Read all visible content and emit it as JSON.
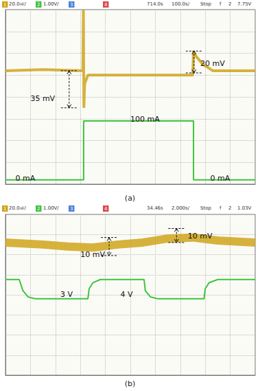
{
  "chart_data": [
    {
      "type": "line",
      "panel_label": "(a)",
      "header": [
        "1",
        "20.0㎷/",
        "2",
        "1.00V/",
        "3",
        "4",
        "714.0s",
        "100.0s/",
        "Stop",
        "f",
        "2",
        "7.75V"
      ],
      "xlim": [
        0,
        10
      ],
      "xticks": [
        0,
        1,
        2,
        3,
        4,
        5,
        6,
        7,
        8,
        9,
        10
      ],
      "ylim": [
        0,
        8
      ],
      "yticks": [
        0,
        1,
        2,
        3,
        4,
        5,
        6,
        7,
        8
      ],
      "grid": true,
      "tick_labels": false,
      "series": [
        {
          "name": "1",
          "color": "#cfa41c",
          "x": [
            0,
            1.5,
            3.1,
            3.12,
            3.14,
            3.17,
            3.3,
            5.0,
            7.5,
            7.53,
            7.6,
            7.9,
            8.3,
            10
          ],
          "values": [
            5.2,
            5.25,
            5.2,
            8.0,
            3.5,
            4.6,
            5.0,
            5.0,
            5.0,
            6.1,
            5.9,
            5.5,
            5.2,
            5.2
          ]
        },
        {
          "name": "2",
          "color": "#3cc43c",
          "x": [
            0,
            3.13,
            3.13,
            7.53,
            7.53,
            10
          ],
          "values": [
            0.2,
            0.2,
            2.9,
            2.9,
            0.2,
            0.2
          ]
        }
      ],
      "annotations": [
        "35 mV",
        "20 mV",
        "100 mA",
        "0 mA",
        "0 mA"
      ]
    },
    {
      "type": "line",
      "panel_label": "(b)",
      "header": [
        "1",
        "20.0㎷/",
        "2",
        "1.00V/",
        "3",
        "4",
        "34.46s",
        "2.000s/",
        "Stop",
        "f",
        "2",
        "1.03V"
      ],
      "xlim": [
        0,
        10
      ],
      "xticks": [
        0,
        1,
        2,
        3,
        4,
        5,
        6,
        7,
        8,
        9,
        10
      ],
      "ylim": [
        0,
        8
      ],
      "yticks": [
        0,
        1,
        2,
        3,
        4,
        5,
        6,
        7,
        8
      ],
      "grid": true,
      "tick_labels": false,
      "series": [
        {
          "name": "1",
          "color": "#cfa41c",
          "x": [
            0,
            1.5,
            2.5,
            3.5,
            4.5,
            5.5,
            6.5,
            7.5,
            8.5,
            10
          ],
          "values": [
            6.6,
            6.5,
            6.4,
            6.35,
            6.5,
            6.6,
            6.8,
            6.85,
            6.7,
            6.6
          ]
        },
        {
          "name": "2",
          "color": "#3cc43c",
          "x": [
            0,
            0.55,
            0.7,
            0.9,
            1.2,
            3.3,
            3.35,
            3.5,
            3.8,
            5.55,
            5.6,
            5.8,
            6.1,
            7.95,
            8.0,
            8.15,
            8.5,
            10
          ],
          "values": [
            4.76,
            4.76,
            4.2,
            3.9,
            3.8,
            3.8,
            4.3,
            4.6,
            4.76,
            4.76,
            4.2,
            3.9,
            3.8,
            3.8,
            4.3,
            4.6,
            4.76,
            4.76
          ]
        }
      ],
      "annotations": [
        "10 mV",
        "10 mV",
        "3 V",
        "4 V"
      ]
    }
  ]
}
